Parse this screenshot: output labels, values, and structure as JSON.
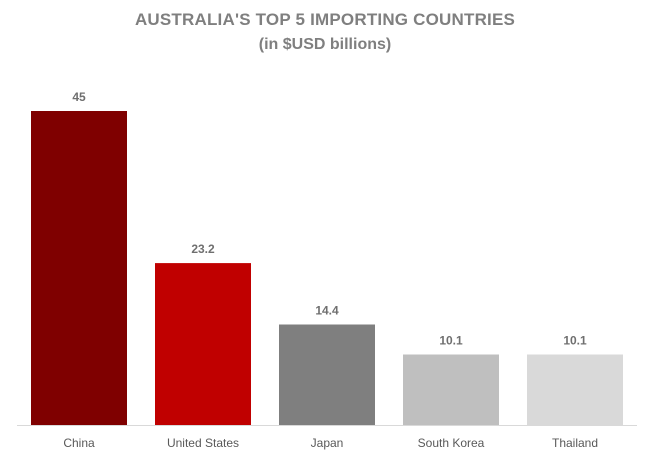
{
  "chart_data": {
    "type": "bar",
    "title": "AUSTRALIA'S TOP 5 IMPORTING COUNTRIES",
    "subtitle": "(in $USD billions)",
    "xlabel": "",
    "ylabel": "",
    "categories": [
      "China",
      "United States",
      "Japan",
      "South Korea",
      "Thailand"
    ],
    "values": [
      45,
      23.2,
      14.4,
      10.1,
      10.1
    ],
    "data_labels": [
      "45",
      "23.2",
      "14.4",
      "10.1",
      "10.1"
    ],
    "colors": [
      "#7f0000",
      "#c00000",
      "#7f7f7f",
      "#bfbfbf",
      "#d9d9d9"
    ],
    "ylim": [
      0,
      45
    ],
    "grid": false,
    "legend": "none"
  }
}
